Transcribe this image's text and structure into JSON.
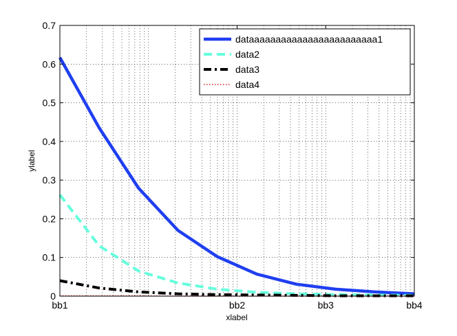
{
  "chart_data": {
    "type": "line",
    "xlabel": "xlabel",
    "ylabel": "ylabel",
    "xscale": "log",
    "xlim": [
      1,
      10000
    ],
    "ylim": [
      0,
      0.7
    ],
    "xticks": [
      1,
      100,
      1000,
      10000
    ],
    "xtick_labels": [
      "bb1",
      "bb2",
      "bb3",
      "bb4"
    ],
    "yticks": [
      0,
      0.1,
      0.2,
      0.3,
      0.4,
      0.5,
      0.6,
      0.7
    ],
    "ytick_labels": [
      "0",
      "0.1",
      "0.2",
      "0.3",
      "0.4",
      "0.5",
      "0.6",
      "0.7"
    ],
    "grid": true,
    "legend_position": "top-right",
    "x": [
      1,
      2.78,
      7.74,
      21.5,
      59.9,
      166.8,
      464.2,
      1292,
      3594,
      10000
    ],
    "series": [
      {
        "name": "dataaaaaaaaaaaaaaaaaaaaaaaa1",
        "color": "#1f3ff0",
        "style": "solid",
        "values": [
          0.617,
          0.435,
          0.279,
          0.17,
          0.102,
          0.057,
          0.031,
          0.018,
          0.011,
          0.006
        ]
      },
      {
        "name": "data2",
        "color": "#66ffdd",
        "style": "dashed",
        "values": [
          0.262,
          0.13,
          0.065,
          0.034,
          0.018,
          0.01,
          0.006,
          0.004,
          0.003,
          0.002
        ]
      },
      {
        "name": "data3",
        "color": "#000000",
        "style": "dashdot",
        "values": [
          0.04,
          0.021,
          0.011,
          0.006,
          0.004,
          0.003,
          0.002,
          0.001,
          0.001,
          0.001
        ]
      },
      {
        "name": "data4",
        "color": "#e02020",
        "style": "dotted",
        "values": [
          0.001,
          0.001,
          0.001,
          0.0,
          0.0,
          0.0,
          0.0,
          0.0,
          0.0,
          0.0
        ]
      }
    ]
  }
}
